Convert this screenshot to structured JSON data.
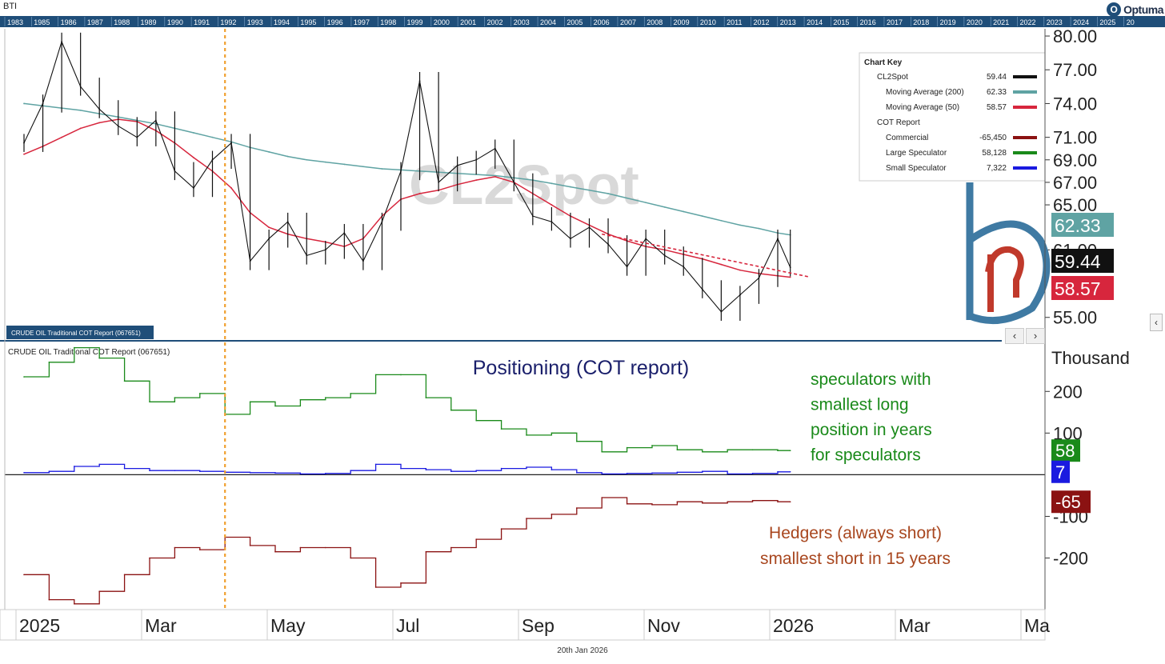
{
  "header": {
    "symbol_label": "BTI",
    "brand": "Optuma",
    "brand_initial": "O",
    "date_footer": "20th Jan 2026"
  },
  "timeline_years": [
    "1983",
    "1985",
    "1986",
    "1987",
    "1988",
    "1989",
    "1990",
    "1991",
    "1992",
    "1993",
    "1994",
    "1995",
    "1996",
    "1997",
    "1998",
    "1999",
    "2000",
    "2001",
    "2002",
    "2003",
    "2004",
    "2005",
    "2006",
    "2007",
    "2008",
    "2009",
    "2010",
    "2011",
    "2012",
    "2013",
    "2014",
    "2015",
    "2016",
    "2017",
    "2018",
    "2019",
    "2020",
    "2021",
    "2022",
    "2023",
    "2024",
    "2025",
    "20"
  ],
  "x_axis": {
    "labels": [
      "2025",
      "Mar",
      "May",
      "Jul",
      "Sep",
      "Nov",
      "2026",
      "Mar",
      "Ma"
    ],
    "label_positions_months": [
      0,
      2,
      4,
      6,
      8,
      10,
      12,
      14,
      16
    ]
  },
  "colors": {
    "price": "#111111",
    "ma200": "#5fa3a3",
    "ma50": "#d7263d",
    "commercial": "#8b1212",
    "large_spec": "#1a8a1a",
    "small_spec": "#1a1ae0",
    "header_bar": "#1f4e79",
    "vline": "#f0a030",
    "watermark": "#d9d9d9"
  },
  "chart_data": [
    {
      "type": "line",
      "name": "price-panel",
      "watermark": "CL2Spot",
      "panel_label": "CRUDE OIL Traditional COT Report (067651)",
      "y_tick_labels": [
        "80.00",
        "77.00",
        "74.00",
        "71.00",
        "69.00",
        "67.00",
        "65.00",
        "61.00",
        "55.00"
      ],
      "y_tick_values": [
        80,
        77,
        74,
        71,
        69,
        67,
        65,
        61,
        55
      ],
      "ylim": [
        54.2,
        80.5
      ],
      "x_months": [
        0.0,
        0.3,
        0.6,
        0.9,
        1.2,
        1.5,
        1.8,
        2.1,
        2.4,
        2.7,
        3.0,
        3.3,
        3.6,
        3.9,
        4.2,
        4.5,
        4.8,
        5.1,
        5.4,
        5.7,
        6.0,
        6.3,
        6.6,
        6.9,
        7.2,
        7.5,
        7.8,
        8.1,
        8.4,
        8.7,
        9.0,
        9.3,
        9.6,
        9.9,
        10.2,
        10.5,
        10.8,
        11.1,
        11.4,
        11.7,
        12.0,
        12.2
      ],
      "series": [
        {
          "name": "CL2Spot",
          "color_key": "price",
          "values": [
            70.5,
            74.0,
            79.5,
            75.5,
            73.5,
            72.0,
            71.0,
            72.5,
            68.0,
            66.5,
            69.0,
            70.5,
            60.0,
            62.0,
            63.5,
            60.5,
            61.0,
            62.5,
            60.0,
            63.5,
            68.0,
            76.0,
            67.0,
            68.5,
            69.0,
            70.0,
            67.0,
            64.0,
            63.5,
            62.0,
            63.0,
            61.5,
            59.5,
            62.0,
            60.5,
            59.5,
            57.5,
            55.5,
            57.0,
            58.5,
            62.0,
            59.44
          ]
        },
        {
          "name": "Moving Average (200)",
          "color_key": "ma200",
          "values": [
            74.0,
            73.8,
            73.6,
            73.4,
            73.1,
            72.8,
            72.5,
            72.2,
            71.8,
            71.4,
            71.0,
            70.6,
            70.1,
            69.7,
            69.3,
            69.0,
            68.8,
            68.6,
            68.4,
            68.2,
            68.1,
            68.0,
            67.9,
            67.8,
            67.7,
            67.6,
            67.4,
            67.2,
            66.9,
            66.6,
            66.3,
            66.0,
            65.6,
            65.2,
            64.8,
            64.4,
            64.0,
            63.6,
            63.2,
            62.9,
            62.5,
            62.33
          ]
        },
        {
          "name": "Moving Average (50)",
          "color_key": "ma50",
          "values": [
            69.5,
            70.2,
            71.0,
            71.8,
            72.3,
            72.6,
            72.4,
            71.6,
            70.5,
            69.2,
            68.0,
            66.5,
            64.3,
            63.0,
            62.4,
            62.0,
            61.7,
            61.3,
            62.0,
            64.0,
            65.5,
            66.0,
            66.3,
            66.8,
            67.2,
            67.5,
            67.0,
            66.0,
            65.0,
            64.0,
            63.2,
            62.4,
            61.8,
            61.3,
            61.0,
            60.6,
            60.2,
            59.7,
            59.2,
            58.9,
            58.7,
            58.57
          ]
        }
      ],
      "trendline_from": [
        9.2,
        62.4
      ],
      "trendline_to": [
        12.5,
        58.6
      ],
      "vline_month": 3.2,
      "price_badges": [
        {
          "value": "62.33",
          "color_key": "ma200"
        },
        {
          "value": "59.44",
          "color_key": "price"
        },
        {
          "value": "58.57",
          "color_key": "ma50"
        }
      ],
      "legend": {
        "title": "Chart Key",
        "rows": [
          {
            "label": "CL2Spot",
            "value": "59.44",
            "color_key": "price",
            "indent": 1
          },
          {
            "label": "Moving Average (200)",
            "value": "62.33",
            "color_key": "ma200",
            "indent": 2
          },
          {
            "label": "Moving Average (50)",
            "value": "58.57",
            "color_key": "ma50",
            "indent": 2
          },
          {
            "label": "COT Report",
            "value": "",
            "color_key": "",
            "indent": 1
          },
          {
            "label": "Commercial",
            "value": "-65,450",
            "color_key": "commercial",
            "indent": 2
          },
          {
            "label": "Large Speculator",
            "value": "58,128",
            "color_key": "large_spec",
            "indent": 2
          },
          {
            "label": "Small Speculator",
            "value": "7,322",
            "color_key": "small_spec",
            "indent": 2
          }
        ]
      }
    },
    {
      "type": "line",
      "name": "cot-panel",
      "title": "Positioning (COT report)",
      "panel_label": "CRUDE OIL Traditional COT Report (067651)",
      "unit_label": "Thousand",
      "y_tick_labels": [
        "200",
        "100",
        "-100",
        "-200"
      ],
      "y_tick_values": [
        200,
        100,
        -100,
        -200
      ],
      "ylim": [
        -320,
        310
      ],
      "x_months": [
        0.0,
        0.4,
        0.8,
        1.2,
        1.6,
        2.0,
        2.4,
        2.8,
        3.2,
        3.6,
        4.0,
        4.4,
        4.8,
        5.2,
        5.6,
        6.0,
        6.4,
        6.8,
        7.2,
        7.6,
        8.0,
        8.4,
        8.8,
        9.2,
        9.6,
        10.0,
        10.4,
        10.8,
        11.2,
        11.6,
        12.0,
        12.2
      ],
      "series": [
        {
          "name": "Large Speculator",
          "color_key": "large_spec",
          "values": [
            235,
            270,
            305,
            280,
            225,
            175,
            185,
            195,
            145,
            175,
            165,
            180,
            185,
            195,
            240,
            240,
            185,
            155,
            130,
            110,
            95,
            100,
            80,
            55,
            65,
            70,
            60,
            55,
            60,
            60,
            58,
            58
          ]
        },
        {
          "name": "Small Speculator",
          "color_key": "small_spec",
          "values": [
            5,
            8,
            20,
            25,
            15,
            10,
            10,
            8,
            6,
            5,
            4,
            2,
            3,
            10,
            25,
            15,
            12,
            8,
            10,
            15,
            18,
            12,
            5,
            2,
            3,
            4,
            6,
            8,
            2,
            3,
            7,
            7
          ]
        },
        {
          "name": "Commercial",
          "color_key": "commercial",
          "values": [
            -240,
            -300,
            -310,
            -280,
            -240,
            -200,
            -175,
            -180,
            -150,
            -170,
            -185,
            -175,
            -175,
            -200,
            -270,
            -260,
            -185,
            -175,
            -155,
            -130,
            -105,
            -95,
            -80,
            -55,
            -70,
            -72,
            -65,
            -68,
            -65,
            -62,
            -65,
            -65
          ]
        }
      ],
      "value_badges": [
        {
          "value": "58",
          "color_key": "large_spec",
          "data_value": 58
        },
        {
          "value": "7",
          "color_key": "small_spec",
          "data_value": 7
        },
        {
          "value": "-65",
          "color_key": "commercial",
          "data_value": -65
        }
      ],
      "annotations": {
        "specs_lines": [
          "speculators with",
          "smallest long",
          "position in years",
          "for speculators"
        ],
        "hedgers_lines": [
          "Hedgers (always short)",
          "smallest short in 15 years"
        ]
      }
    }
  ]
}
